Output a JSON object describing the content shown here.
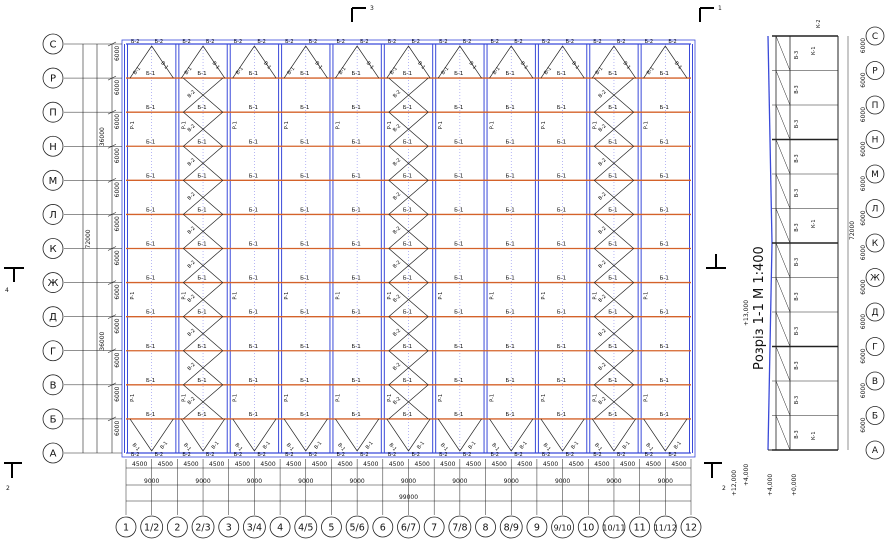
{
  "drawing": {
    "section_title": "Розріз 1-1 М 1:400",
    "rows": [
      "С",
      "Р",
      "П",
      "Н",
      "М",
      "Л",
      "К",
      "Ж",
      "Д",
      "Г",
      "В",
      "Б",
      "А"
    ],
    "section_rows": [
      "С",
      "Р",
      "П",
      "Н",
      "М",
      "Л",
      "К",
      "Ж",
      "Д",
      "Г",
      "В",
      "Б",
      "А"
    ],
    "columns": [
      "1",
      "1/2",
      "2",
      "2/3",
      "3",
      "3/4",
      "4",
      "4/5",
      "5",
      "5/6",
      "6",
      "6/7",
      "7",
      "7/8",
      "8",
      "8/9",
      "9",
      "9/10",
      "10",
      "10/11",
      "11",
      "11/12",
      "12"
    ],
    "row_dims": [
      "6000",
      "6000",
      "6000",
      "6000",
      "6000",
      "6000",
      "6000",
      "6000",
      "6000",
      "6000",
      "6000",
      "6000"
    ],
    "half_dims": [
      "36000",
      "36000"
    ],
    "total_vertical": "72000",
    "col_half_dim": "4500",
    "bay_dim": "9000",
    "total_horizontal": "99000",
    "section_marks": {
      "top_left": "3",
      "top_right": "1",
      "bottom_left": "2",
      "bottom_right": "2",
      "left_mid": "4",
      "right_mid": "1"
    },
    "labels": {
      "beam_main": "Б-1",
      "beam_edge": "Б-2",
      "column": "Р-1",
      "brace_1": "В-1",
      "brace_2": "В-2",
      "brace_3": "В-3",
      "brace_4": "В-4",
      "purlin_k": "К-1",
      "purlin_k2": "К-2"
    },
    "section_dims": [
      "6000",
      "6000",
      "6000",
      "6000",
      "6000",
      "6000",
      "6000",
      "6000",
      "6000",
      "6000",
      "6000",
      "6000"
    ],
    "section_total": "72000",
    "elevations": [
      "+13,000",
      "+12,000",
      "+4,000",
      "+4,000",
      "+0,000"
    ],
    "colors": {
      "beam": "#d4622a",
      "column": "#3a4ad9",
      "line": "#222222"
    }
  }
}
